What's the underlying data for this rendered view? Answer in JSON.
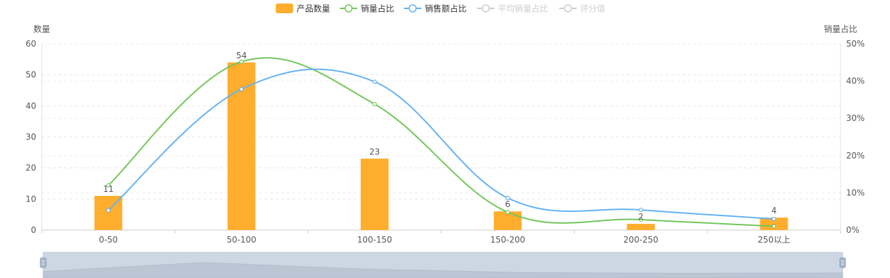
{
  "legend": {
    "items": [
      {
        "label": "产品数量",
        "shape": "bar",
        "color": "#FFAD2D",
        "active": true
      },
      {
        "label": "销量占比",
        "shape": "line",
        "color": "#72C65A",
        "active": true
      },
      {
        "label": "销售额占比",
        "shape": "line",
        "color": "#65B2F1",
        "active": true
      },
      {
        "label": "平均销量占比",
        "shape": "line",
        "color": "#CCCCCC",
        "active": false
      },
      {
        "label": "评分值",
        "shape": "line",
        "color": "#CCCCCC",
        "active": false
      }
    ]
  },
  "chart_data": {
    "type": "bar",
    "categories": [
      "0-50",
      "50-100",
      "100-150",
      "150-200",
      "200-250",
      "250以上"
    ],
    "y_left": {
      "label": "数量",
      "min": 0,
      "max": 60,
      "ticks": [
        "0",
        "10",
        "20",
        "30",
        "40",
        "50",
        "60"
      ]
    },
    "y_right": {
      "label": "销量占比",
      "min": 0,
      "max": 50,
      "ticks": [
        "0%",
        "10%",
        "20%",
        "30%",
        "40%",
        "50%"
      ]
    },
    "series": [
      {
        "name": "产品数量",
        "type": "bar",
        "axis": "left",
        "color": "#FFAD2D",
        "values": [
          11,
          54,
          23,
          6,
          2,
          4
        ],
        "labels": [
          "11",
          "54",
          "23",
          "6",
          "2",
          "4"
        ]
      },
      {
        "name": "销量占比",
        "type": "line",
        "axis": "right",
        "color": "#72C65A",
        "values": [
          12.0,
          45.2,
          33.8,
          4.8,
          2.8,
          1.0
        ]
      },
      {
        "name": "销售额占比",
        "type": "line",
        "axis": "right",
        "color": "#65B2F1",
        "values": [
          5.3,
          37.8,
          39.8,
          8.6,
          5.4,
          3.0
        ]
      }
    ],
    "grid": true,
    "legend_position": "top-center"
  },
  "datazoom": {
    "start_percent": 0,
    "end_percent": 100
  }
}
